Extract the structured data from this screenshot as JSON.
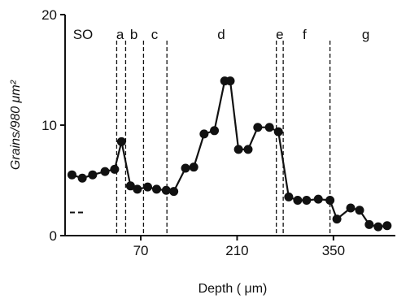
{
  "chart_data": {
    "type": "line",
    "xlabel": "Depth ( μm)",
    "ylabel": "Grains/980 μm²",
    "xlim": [
      -40,
      440
    ],
    "ylim": [
      0,
      20
    ],
    "x_ticks": [
      70,
      210,
      350
    ],
    "y_ticks": [
      0,
      10,
      20
    ],
    "grid": false,
    "series": [
      {
        "x": [
          -30,
          -15,
          0,
          18,
          32,
          42,
          55,
          65,
          80,
          93,
          107,
          118,
          135,
          147,
          162,
          177,
          192,
          200,
          212,
          226,
          240,
          257,
          270,
          285,
          298,
          311,
          328,
          345,
          355,
          375,
          388,
          402,
          415,
          428
        ],
        "y": [
          5.5,
          5.2,
          5.5,
          5.8,
          6.0,
          8.5,
          4.5,
          4.2,
          4.4,
          4.2,
          4.1,
          4.0,
          6.1,
          6.2,
          9.2,
          9.5,
          14.0,
          14.0,
          7.8,
          7.8,
          9.8,
          9.8,
          9.4,
          3.5,
          3.2,
          3.2,
          3.3,
          3.2,
          1.5,
          2.5,
          2.3,
          1.0,
          0.8,
          0.9
        ]
      }
    ],
    "baseline": {
      "y": 2.1,
      "x_range": [
        -40,
        -10
      ]
    },
    "regions": {
      "boundaries": [
        35,
        48,
        74,
        108,
        267,
        277,
        345
      ],
      "labels": [
        {
          "text": "SO",
          "x": -14
        },
        {
          "text": "a",
          "x": 40
        },
        {
          "text": "b",
          "x": 60
        },
        {
          "text": "c",
          "x": 90
        },
        {
          "text": "d",
          "x": 187
        },
        {
          "text": "e",
          "x": 272
        },
        {
          "text": "f",
          "x": 308
        },
        {
          "text": "g",
          "x": 397
        }
      ]
    }
  }
}
